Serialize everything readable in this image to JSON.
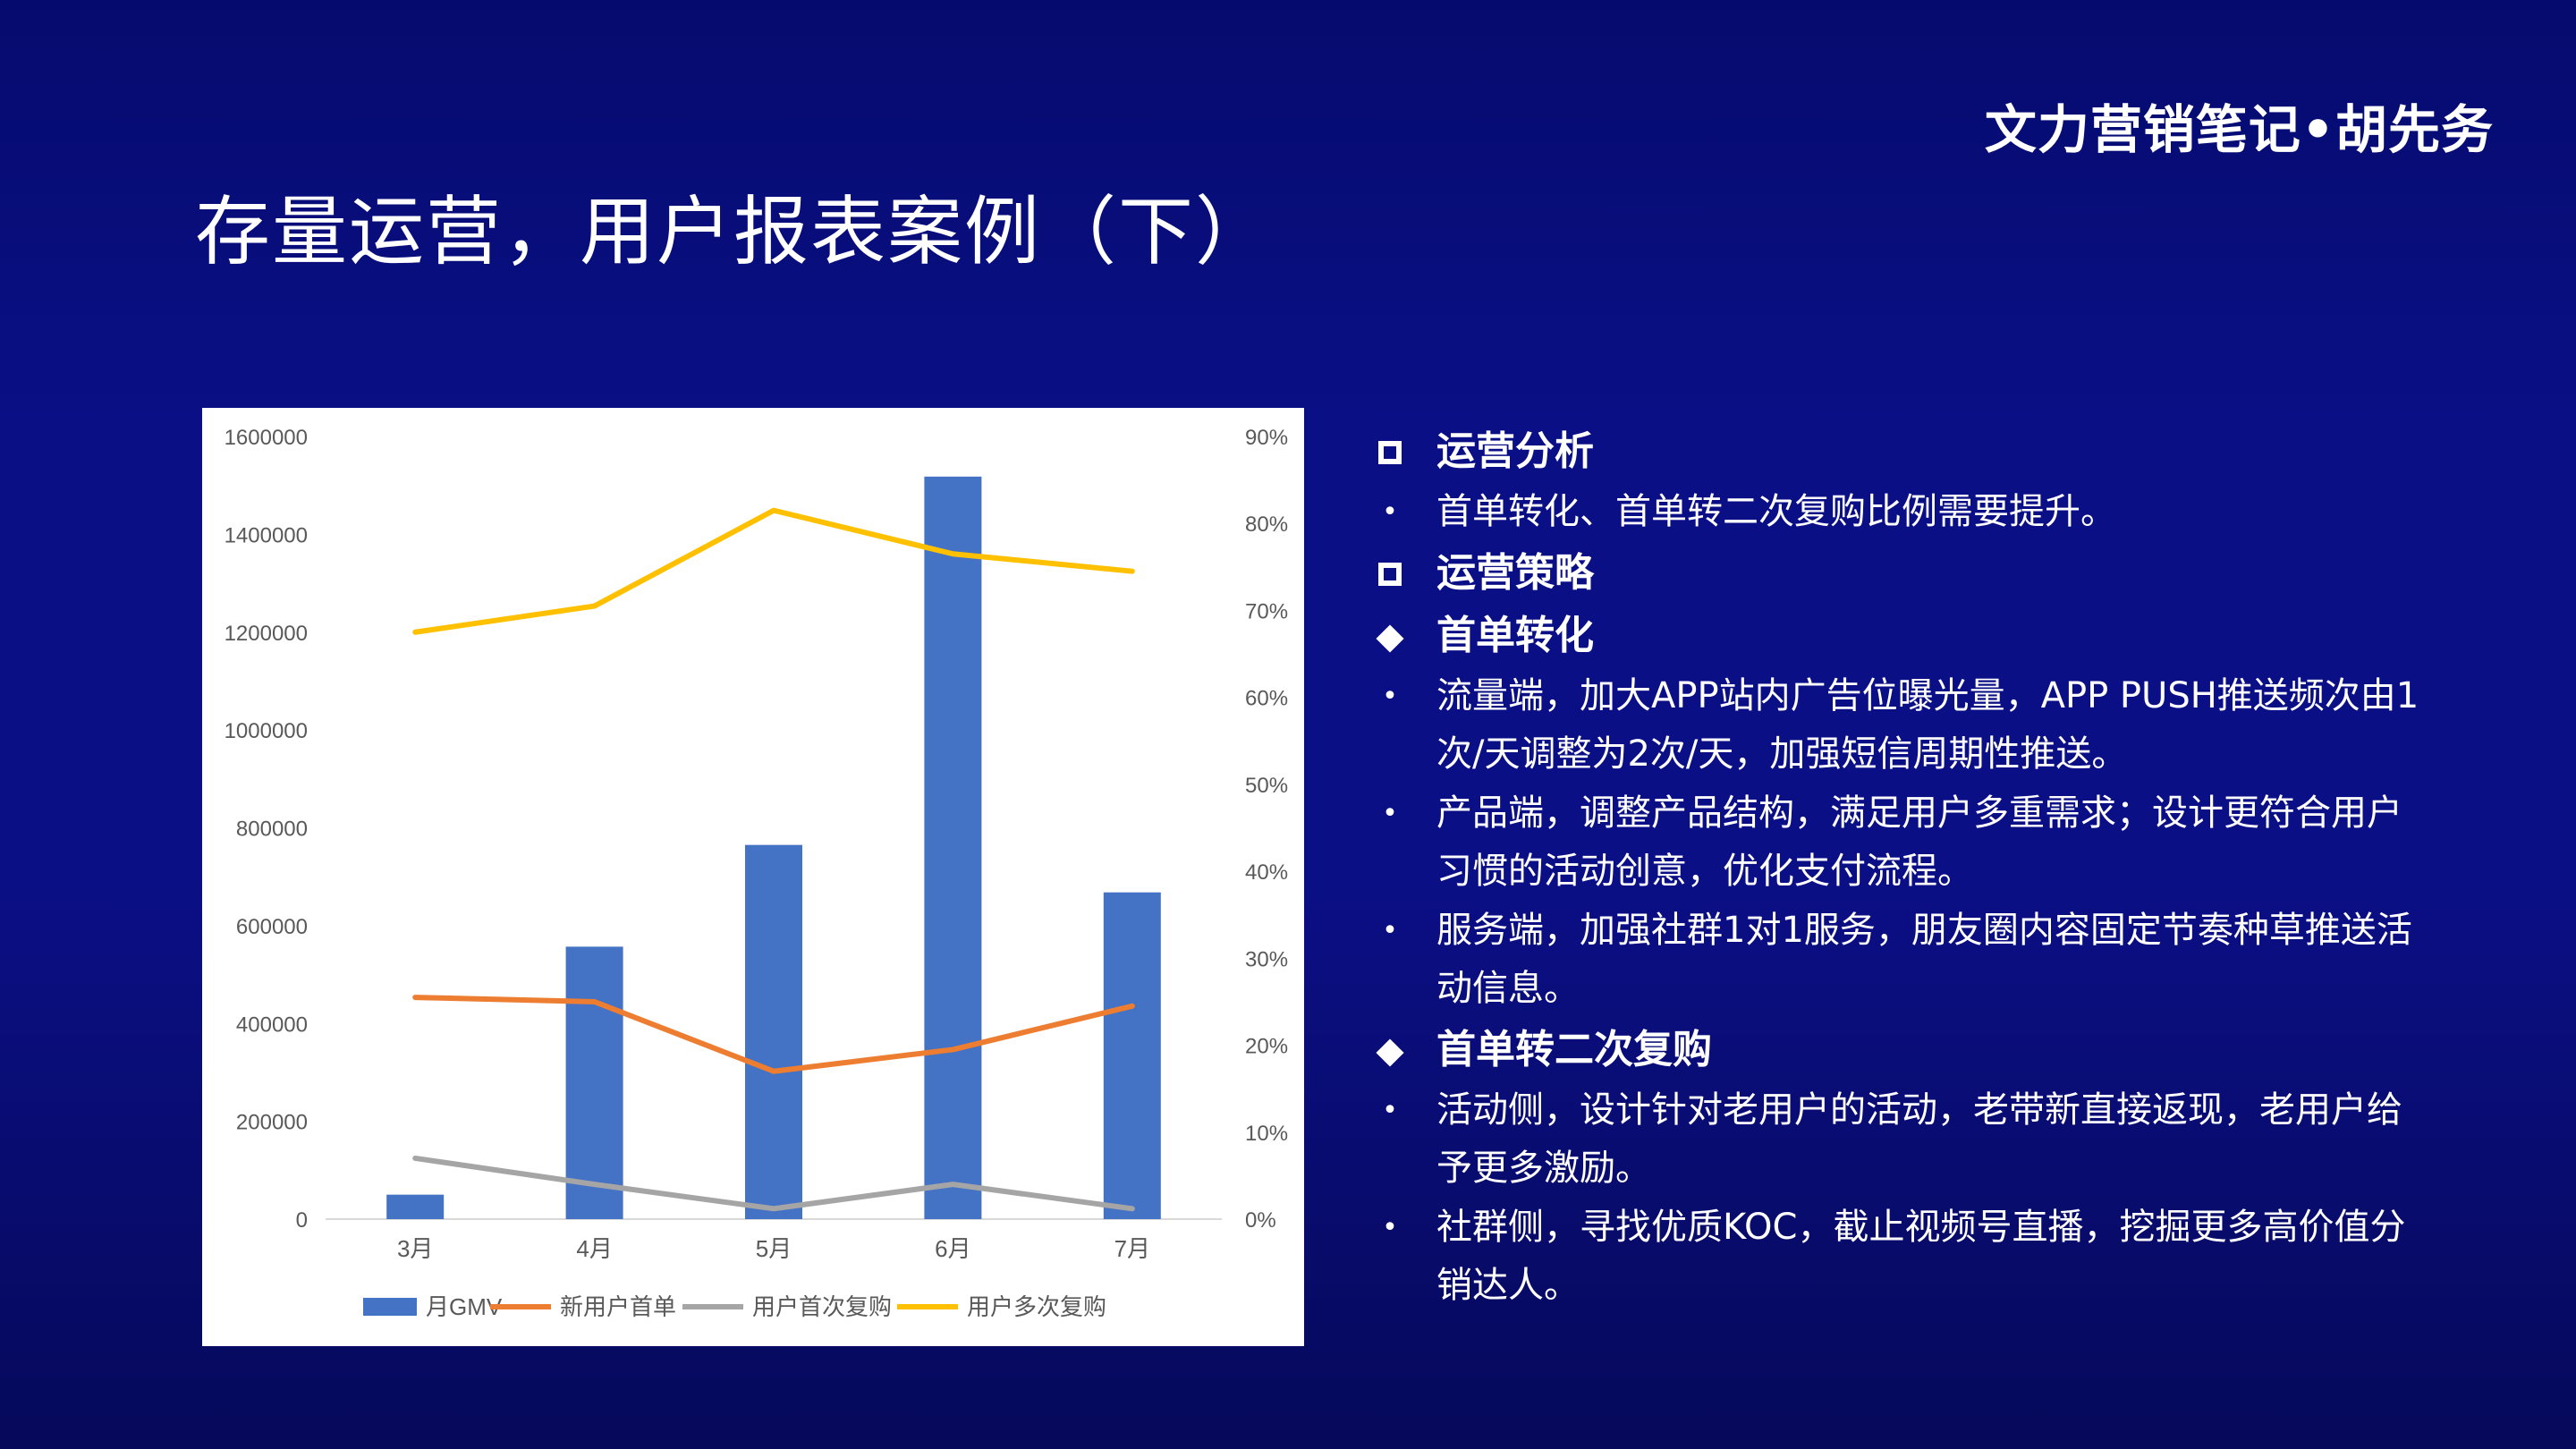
{
  "brand": "文力营销笔记•胡先务",
  "title": "存量运营，用户报表案例（下）",
  "chart_data": {
    "type": "bar",
    "categories": [
      "3月",
      "4月",
      "5月",
      "6月",
      "7月"
    ],
    "series": [
      {
        "name": "月GMV",
        "type": "bar",
        "axis": "left",
        "color": "#4472c4",
        "values": [
          50000,
          557000,
          765000,
          1518000,
          668000
        ]
      },
      {
        "name": "新用户首单",
        "type": "line",
        "axis": "right",
        "color": "#ed7d31",
        "values": [
          0.255,
          0.25,
          0.17,
          0.195,
          0.245
        ]
      },
      {
        "name": "用户首次复购",
        "type": "line",
        "axis": "right",
        "color": "#a5a5a5",
        "values": [
          0.07,
          0.04,
          0.012,
          0.04,
          0.012
        ]
      },
      {
        "name": "用户多次复购",
        "type": "line",
        "axis": "right",
        "color": "#ffc000",
        "values": [
          0.675,
          0.705,
          0.815,
          0.765,
          0.745
        ]
      }
    ],
    "y_left": {
      "min": 0,
      "max": 1600000,
      "step": 200000,
      "ticks": [
        "0",
        "200000",
        "400000",
        "600000",
        "800000",
        "1000000",
        "1200000",
        "1400000",
        "1600000"
      ]
    },
    "y_right": {
      "min": 0,
      "max": 0.9,
      "step": 0.1,
      "ticks": [
        "0%",
        "10%",
        "20%",
        "30%",
        "40%",
        "50%",
        "60%",
        "70%",
        "80%",
        "90%"
      ]
    },
    "legend": "bottom",
    "grid": false
  },
  "bullets": [
    {
      "kind": "heading",
      "text": "运营分析"
    },
    {
      "kind": "dot",
      "text": "首单转化、首单转二次复购比例需要提升。"
    },
    {
      "kind": "heading",
      "text": "运营策略"
    },
    {
      "kind": "sub",
      "text": "首单转化"
    },
    {
      "kind": "dot",
      "text": "流量端，加大APP站内广告位曝光量，APP PUSH推送频次由1次/天调整为2次/天，加强短信周期性推送。"
    },
    {
      "kind": "dot",
      "text": "产品端，调整产品结构，满足用户多重需求；设计更符合用户习惯的活动创意，优化支付流程。"
    },
    {
      "kind": "dot",
      "text": "服务端，加强社群1对1服务，朋友圈内容固定节奏种草推送活动信息。"
    },
    {
      "kind": "sub",
      "text": "首单转二次复购"
    },
    {
      "kind": "dot",
      "text": "活动侧，设计针对老用户的活动，老带新直接返现，老用户给予更多激励。"
    },
    {
      "kind": "dot",
      "text": "社群侧，寻找优质KOC，截止视频号直播，挖掘更多高价值分销达人。"
    }
  ]
}
